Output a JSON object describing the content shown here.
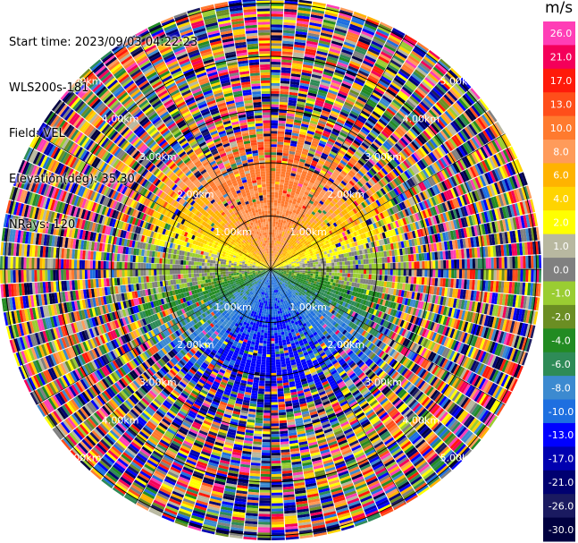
{
  "header": {
    "start_time": "Start time: 2023/09/03 04:22:23",
    "instrument": "WLS200s-181",
    "field": "Field: VEL",
    "elevation": "Elevation(deg): 35.30",
    "nrays": "NRays: 120"
  },
  "chart_data": {
    "type": "ppi-polar",
    "field": "VEL",
    "unit": "m/s",
    "nrays": 120,
    "elevation_deg": 35.3,
    "range_rings": [
      {
        "label": "1.00km",
        "value_km": 1.0
      },
      {
        "label": "2.00km",
        "value_km": 2.0
      },
      {
        "label": "3.00km",
        "value_km": 3.0
      },
      {
        "label": "4.00km",
        "value_km": 4.0
      },
      {
        "label": "5.00km",
        "value_km": 5.0
      }
    ],
    "max_range_km": 5.6,
    "colorbar": {
      "title": "m/s",
      "bins": [
        {
          "label": "26.0",
          "color": "#ff3eb6"
        },
        {
          "label": "21.0",
          "color": "#f4005a"
        },
        {
          "label": "17.0",
          "color": "#ff1a0a"
        },
        {
          "label": "13.0",
          "color": "#ff4e1a"
        },
        {
          "label": "10.0",
          "color": "#ff7a2e"
        },
        {
          "label": "8.0",
          "color": "#ff9b5a"
        },
        {
          "label": "6.0",
          "color": "#ffb300"
        },
        {
          "label": "4.0",
          "color": "#ffd400"
        },
        {
          "label": "2.0",
          "color": "#ffff00"
        },
        {
          "label": "1.0",
          "color": "#b8b8a0"
        },
        {
          "label": "0.0",
          "color": "#808080"
        },
        {
          "label": "-1.0",
          "color": "#9acd32"
        },
        {
          "label": "-2.0",
          "color": "#6b8e23"
        },
        {
          "label": "-4.0",
          "color": "#228b22"
        },
        {
          "label": "-6.0",
          "color": "#2e8b57"
        },
        {
          "label": "-8.0",
          "color": "#3c8ad0"
        },
        {
          "label": "-10.0",
          "color": "#1e6fe0"
        },
        {
          "label": "-13.0",
          "color": "#0000ff"
        },
        {
          "label": "-17.0",
          "color": "#0000b0"
        },
        {
          "label": "-21.0",
          "color": "#000070"
        },
        {
          "label": "-26.0",
          "color": "#1a1a60"
        },
        {
          "label": "-30.0",
          "color": "#000040"
        }
      ]
    }
  }
}
